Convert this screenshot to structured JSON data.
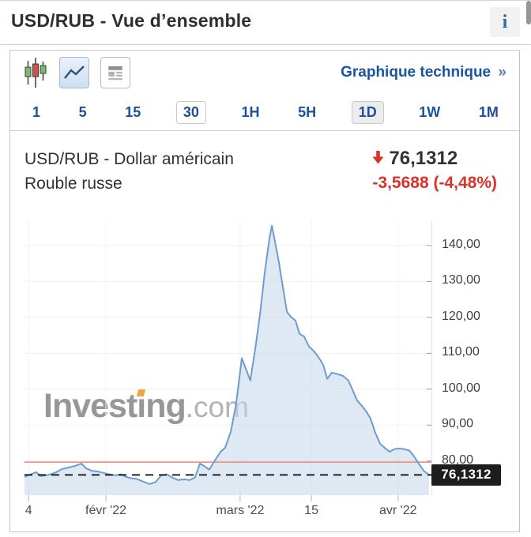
{
  "page": {
    "title": "USD/RUB - Vue d’ensemble"
  },
  "header": {
    "info_icon": "i"
  },
  "toolbar": {
    "candlestick_icon": "candlestick-chart",
    "line_chart_icon": "line-chart",
    "news_icon": "news-article",
    "technical_chart_label": "Graphique technique",
    "chevron": "»"
  },
  "tabs": [
    {
      "label": "1"
    },
    {
      "label": "5"
    },
    {
      "label": "15"
    },
    {
      "label": "30",
      "style": "boxed"
    },
    {
      "label": "1H"
    },
    {
      "label": "5H"
    },
    {
      "label": "1D",
      "style": "boxed active"
    },
    {
      "label": "1W"
    },
    {
      "label": "1M"
    }
  ],
  "instrument": {
    "name_line1": "USD/RUB - Dollar américain",
    "name_line2": "Rouble russe",
    "direction": "down",
    "price": "76,1312",
    "change": "-3,5688  (-4,48%)"
  },
  "watermark": {
    "part1": "Invest",
    "part2": "ı",
    "part3": "ng",
    "suffix": ".com"
  },
  "colors": {
    "accent_blue": "#1d4f9c",
    "link_blue": "#1a55a2",
    "negative_red": "#d93229",
    "chart_line": "#6f9bd1",
    "chart_fill": "#c3d7ea",
    "grid": "#f1f1f1",
    "previous_close_line": "#ef8d82",
    "dashed_price_line": "#222222",
    "price_tag_bg": "#1d1d1d"
  },
  "chart_data": {
    "type": "area",
    "series": [
      {
        "name": "USD/RUB",
        "points": [
          [
            0.0,
            75.6
          ],
          [
            0.016,
            76.3
          ],
          [
            0.029,
            76.9
          ],
          [
            0.039,
            75.8
          ],
          [
            0.052,
            76.0
          ],
          [
            0.064,
            76.3
          ],
          [
            0.078,
            76.9
          ],
          [
            0.093,
            77.8
          ],
          [
            0.109,
            78.2
          ],
          [
            0.126,
            78.7
          ],
          [
            0.14,
            79.3
          ],
          [
            0.151,
            78.0
          ],
          [
            0.165,
            77.3
          ],
          [
            0.179,
            77.1
          ],
          [
            0.194,
            76.7
          ],
          [
            0.208,
            76.3
          ],
          [
            0.223,
            76.0
          ],
          [
            0.237,
            76.3
          ],
          [
            0.249,
            75.6
          ],
          [
            0.262,
            75.2
          ],
          [
            0.276,
            75.0
          ],
          [
            0.291,
            74.3
          ],
          [
            0.307,
            73.6
          ],
          [
            0.322,
            74.1
          ],
          [
            0.336,
            76.0
          ],
          [
            0.35,
            76.3
          ],
          [
            0.363,
            75.4
          ],
          [
            0.377,
            74.7
          ],
          [
            0.392,
            74.9
          ],
          [
            0.406,
            74.7
          ],
          [
            0.419,
            75.4
          ],
          [
            0.431,
            79.3
          ],
          [
            0.443,
            78.5
          ],
          [
            0.454,
            77.6
          ],
          [
            0.468,
            80.2
          ],
          [
            0.482,
            82.6
          ],
          [
            0.493,
            83.7
          ],
          [
            0.507,
            88.2
          ],
          [
            0.52,
            95.9
          ],
          [
            0.534,
            108.6
          ],
          [
            0.546,
            105.1
          ],
          [
            0.555,
            102.4
          ],
          [
            0.567,
            111.2
          ],
          [
            0.579,
            121.1
          ],
          [
            0.59,
            132.1
          ],
          [
            0.602,
            142.0
          ],
          [
            0.608,
            145.5
          ],
          [
            0.616,
            140.9
          ],
          [
            0.625,
            135.4
          ],
          [
            0.635,
            128.4
          ],
          [
            0.645,
            121.5
          ],
          [
            0.656,
            120.0
          ],
          [
            0.666,
            119.1
          ],
          [
            0.676,
            115.4
          ],
          [
            0.687,
            114.7
          ],
          [
            0.699,
            111.9
          ],
          [
            0.711,
            110.6
          ],
          [
            0.722,
            109.0
          ],
          [
            0.734,
            106.8
          ],
          [
            0.744,
            102.9
          ],
          [
            0.755,
            104.6
          ],
          [
            0.769,
            104.2
          ],
          [
            0.783,
            103.7
          ],
          [
            0.796,
            102.4
          ],
          [
            0.806,
            99.8
          ],
          [
            0.817,
            96.9
          ],
          [
            0.829,
            95.4
          ],
          [
            0.841,
            93.6
          ],
          [
            0.85,
            91.9
          ],
          [
            0.862,
            87.9
          ],
          [
            0.874,
            84.8
          ],
          [
            0.887,
            83.5
          ],
          [
            0.897,
            82.6
          ],
          [
            0.909,
            83.3
          ],
          [
            0.92,
            83.5
          ],
          [
            0.934,
            83.3
          ],
          [
            0.946,
            82.9
          ],
          [
            0.957,
            81.3
          ],
          [
            0.969,
            79.3
          ],
          [
            0.981,
            77.3
          ],
          [
            0.994,
            76.13
          ]
        ]
      }
    ],
    "ylim": [
      70.5,
      146.8
    ],
    "yticks": [
      {
        "v": 80,
        "label": "80,00"
      },
      {
        "v": 90,
        "label": "90,00"
      },
      {
        "v": 100,
        "label": "100,00"
      },
      {
        "v": 110,
        "label": "110,00"
      },
      {
        "v": 120,
        "label": "120,00"
      },
      {
        "v": 130,
        "label": "130,00"
      },
      {
        "v": 140,
        "label": "140,00"
      }
    ],
    "xticks": [
      {
        "pos": 0.01,
        "label": "4"
      },
      {
        "pos": 0.2,
        "label": "févr '22"
      },
      {
        "pos": 0.53,
        "label": "mars '22"
      },
      {
        "pos": 0.705,
        "label": "15"
      },
      {
        "pos": 0.918,
        "label": "avr '22"
      }
    ],
    "previous_close": 79.7,
    "current_price": 76.1312,
    "current_price_label": "76,1312",
    "grid": true,
    "legend": false
  }
}
